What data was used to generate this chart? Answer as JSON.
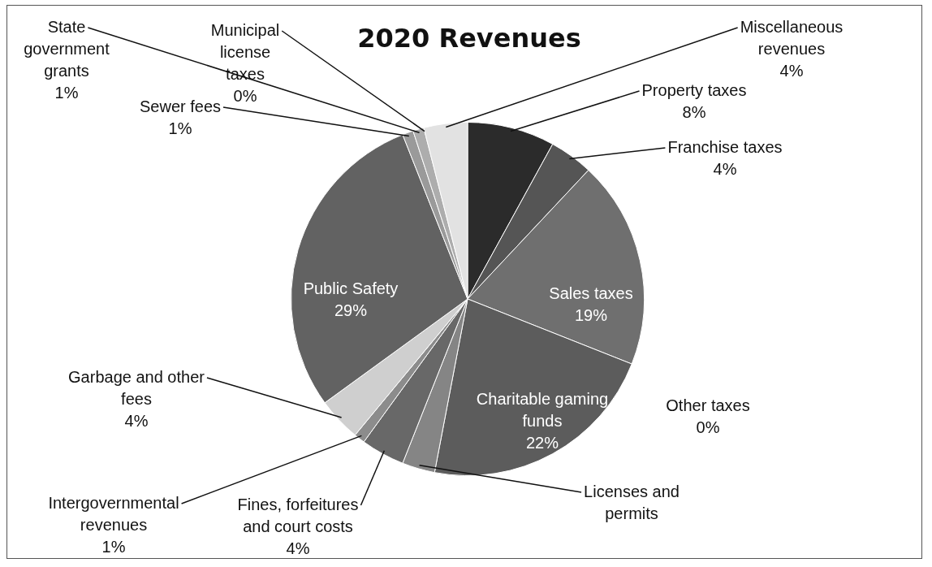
{
  "chart_data": {
    "type": "pie",
    "title": "2020 Revenues",
    "categories": [
      "Property taxes",
      "Franchise taxes",
      "Sales taxes",
      "Other taxes",
      "Charitable gaming funds",
      "Licenses and permits",
      "Fines, forfeitures and court costs",
      "Intergovernmental revenues",
      "Garbage and other fees",
      "Public Safety",
      "Sewer fees",
      "State government grants",
      "Municipal license taxes",
      "Miscellaneous revenues"
    ],
    "values": [
      8,
      4,
      19,
      0,
      22,
      3,
      4,
      1,
      4,
      29,
      1,
      1,
      0,
      4
    ],
    "value_labels": [
      "8%",
      "4%",
      "19%",
      "0%",
      "22%",
      null,
      "4%",
      "1%",
      "4%",
      "29%",
      "1%",
      "1%",
      "0%",
      "4%"
    ],
    "colors": [
      "#2b2b2b",
      "#555555",
      "#6f6f6f",
      "#777777",
      "#5c5c5c",
      "#858585",
      "#686868",
      "#8c8c8c",
      "#cfcfcf",
      "#626262",
      "#9a9a9a",
      "#adadad",
      "#c2c2c2",
      "#e2e2e2"
    ],
    "legend": false
  }
}
